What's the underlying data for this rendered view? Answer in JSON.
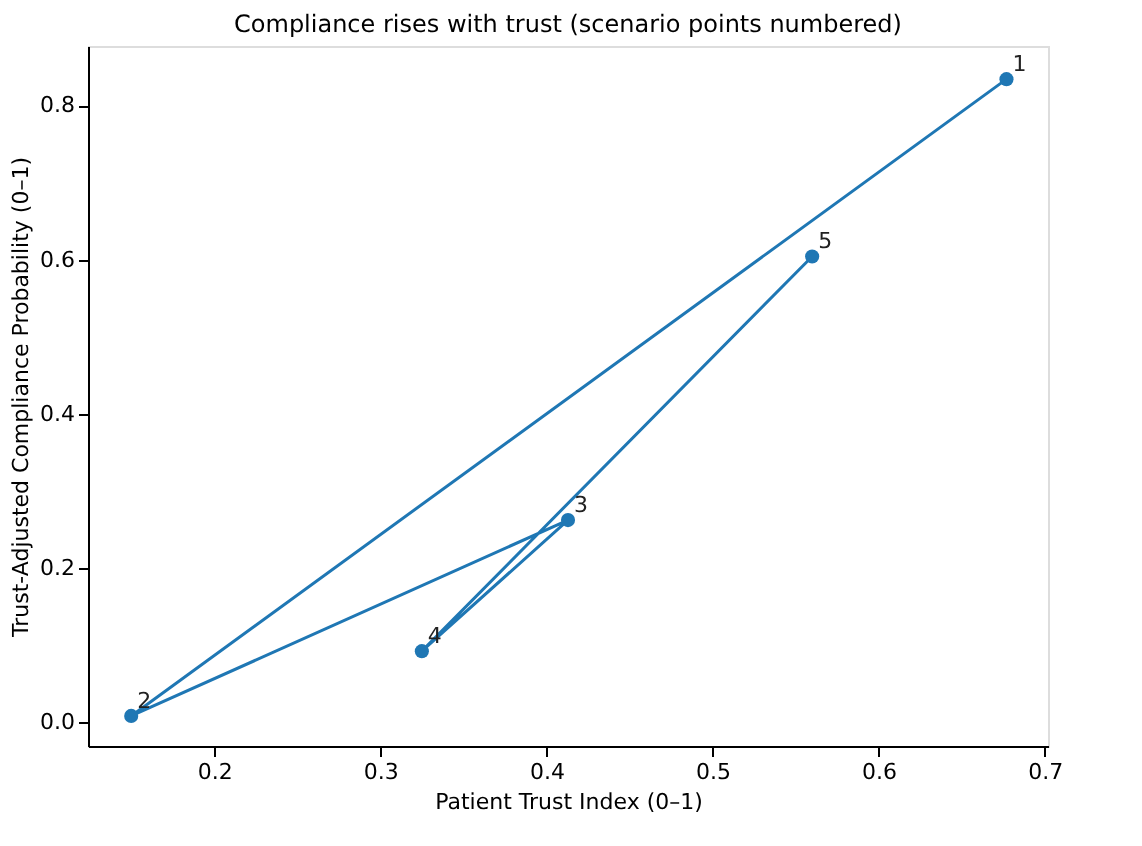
{
  "chart_data": {
    "type": "line",
    "title": "Compliance rises with trust (scenario points numbered)",
    "xlabel": "Patient Trust Index (0–1)",
    "ylabel": "Trust-Adjusted Compliance Probability (0–1)",
    "x": [
      0.677,
      0.15,
      0.413,
      0.325,
      0.56
    ],
    "series": [
      {
        "color": "#1f77b4",
        "values": [
          0.834,
          0.008,
          0.262,
          0.092,
          0.604
        ]
      }
    ],
    "marker": "circle",
    "line_style": "solid",
    "grid": false,
    "legend": false,
    "xlim": [
      0.124,
      0.702
    ],
    "xticks": [
      {
        "value": 0.2,
        "label": "0.2"
      },
      {
        "value": 0.3,
        "label": "0.3"
      },
      {
        "value": 0.4,
        "label": "0.4"
      },
      {
        "value": 0.5,
        "label": "0.5"
      },
      {
        "value": 0.6,
        "label": "0.6"
      },
      {
        "value": 0.7,
        "label": "0.7"
      }
    ],
    "ylim": [
      -0.031,
      0.877
    ],
    "yticks": [
      {
        "value": 0,
        "label": "0.0"
      },
      0.2,
      0.4,
      0.6,
      0.8
    ],
    "annotations": [
      {
        "text": "1",
        "x": 0.677,
        "y": 0.834
      },
      {
        "text": "2",
        "x": 0.15,
        "y": 0.008
      },
      {
        "text": "3",
        "x": 0.413,
        "y": 0.262
      },
      {
        "text": "4",
        "x": 0.325,
        "y": 0.092
      },
      {
        "text": "5",
        "x": 0.56,
        "y": 0.604
      }
    ]
  }
}
